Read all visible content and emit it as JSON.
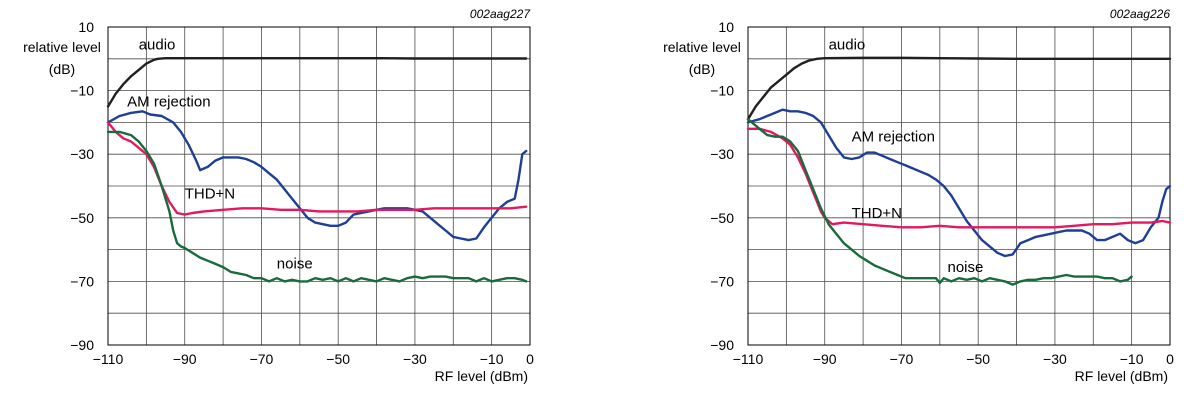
{
  "chart_data": [
    {
      "type": "line",
      "id_label": "002aag227",
      "ylabel": [
        "relative level",
        "(dB)"
      ],
      "xlabel": "RF level (dBm)",
      "xlim": [
        -110,
        0
      ],
      "ylim": [
        -90,
        10
      ],
      "xticks": [
        -110,
        -90,
        -70,
        -50,
        -30,
        -10,
        0
      ],
      "xtick_labels": [
        "−110",
        "−90",
        "−70",
        "−50",
        "−30",
        "−10",
        "0"
      ],
      "yticks": [
        10,
        -10,
        -30,
        -50,
        -70,
        -90
      ],
      "ytick_labels": [
        "10",
        "−10",
        "−30",
        "−50",
        "−70",
        "−90"
      ],
      "grid": true,
      "series": [
        {
          "name": "audio",
          "color": "#231f20",
          "label_at": [
            -102,
            3
          ],
          "x": [
            -110,
            -108,
            -106,
            -104,
            -102,
            -100,
            -98,
            -97,
            -95,
            -90,
            -80,
            -70,
            -60,
            -50,
            -40,
            -30,
            -20,
            -10,
            -1
          ],
          "y": [
            -15,
            -11,
            -8,
            -5.5,
            -3.5,
            -1.5,
            -0.3,
            0,
            0.2,
            0.2,
            0.2,
            0.2,
            0.2,
            0.2,
            0.2,
            0.1,
            0.1,
            0.1,
            0.1
          ]
        },
        {
          "name": "AM rejection",
          "color": "#1e3f96",
          "label_at": [
            -105,
            -15
          ],
          "x": [
            -110,
            -107,
            -104,
            -101,
            -99,
            -96,
            -93,
            -91,
            -89,
            -87,
            -86,
            -84,
            -82,
            -80,
            -78,
            -76,
            -74,
            -72,
            -70,
            -68,
            -66,
            -64,
            -62,
            -60,
            -58,
            -56,
            -54,
            -52,
            -50,
            -48,
            -46,
            -44,
            -42,
            -40,
            -38,
            -36,
            -34,
            -32,
            -30,
            -28,
            -26,
            -24,
            -22,
            -20,
            -18,
            -16,
            -14,
            -12,
            -10,
            -8,
            -6,
            -4,
            -3,
            -2,
            -1
          ],
          "y": [
            -20,
            -18,
            -17,
            -16.5,
            -17.5,
            -18,
            -20,
            -23,
            -27,
            -32,
            -35,
            -34,
            -32,
            -31,
            -31,
            -31,
            -31.5,
            -32.5,
            -34,
            -36,
            -38,
            -41,
            -44,
            -47,
            -50,
            -51.5,
            -52,
            -52.5,
            -52.5,
            -51.5,
            -49,
            -48.5,
            -48,
            -47.5,
            -47,
            -47,
            -47,
            -47,
            -47.5,
            -48,
            -50,
            -52,
            -54,
            -56,
            -56.5,
            -57,
            -56.5,
            -53,
            -50,
            -47,
            -45,
            -44,
            -38,
            -30,
            -29
          ]
        },
        {
          "name": "THD+N",
          "color": "#e4185c",
          "label_at": [
            -90,
            -44
          ],
          "x": [
            -110,
            -108,
            -106,
            -104,
            -102,
            -100,
            -98,
            -96,
            -94,
            -92,
            -90,
            -88,
            -85,
            -80,
            -75,
            -70,
            -65,
            -60,
            -55,
            -50,
            -45,
            -40,
            -35,
            -30,
            -25,
            -20,
            -15,
            -10,
            -5,
            -1
          ],
          "y": [
            -20,
            -23,
            -25,
            -26,
            -28,
            -30,
            -34,
            -40,
            -45,
            -48.5,
            -49,
            -48.5,
            -48,
            -47.5,
            -47,
            -47,
            -47.5,
            -47.5,
            -48,
            -48,
            -48,
            -47.5,
            -47.5,
            -47.5,
            -47,
            -47,
            -47,
            -47,
            -47,
            -46.5
          ]
        },
        {
          "name": "noise",
          "color": "#1a6b3c",
          "label_at": [
            -66,
            -66
          ],
          "x": [
            -110,
            -107,
            -104,
            -102,
            -100,
            -98,
            -96,
            -94,
            -93,
            -92,
            -91,
            -90,
            -88,
            -86,
            -84,
            -82,
            -80,
            -78,
            -76,
            -74,
            -72,
            -70,
            -68,
            -66,
            -64,
            -62,
            -60,
            -58,
            -56,
            -54,
            -52,
            -50,
            -48,
            -46,
            -44,
            -42,
            -40,
            -38,
            -36,
            -34,
            -32,
            -30,
            -28,
            -26,
            -24,
            -22,
            -20,
            -18,
            -16,
            -14,
            -12,
            -10,
            -8,
            -6,
            -4,
            -2,
            -1
          ],
          "y": [
            -23,
            -23,
            -24,
            -26,
            -29,
            -33,
            -40,
            -48,
            -54,
            -58,
            -59,
            -59.5,
            -61,
            -62.5,
            -63.5,
            -64.5,
            -65.5,
            -67,
            -67.5,
            -68,
            -69,
            -69,
            -70,
            -69,
            -70,
            -69.5,
            -70,
            -70,
            -69,
            -69.5,
            -69,
            -70,
            -69,
            -70,
            -69,
            -69.5,
            -70,
            -69,
            -69.5,
            -70,
            -69,
            -68.5,
            -69,
            -68.5,
            -68.5,
            -68.5,
            -69,
            -69,
            -69,
            -70,
            -69,
            -70,
            -69.5,
            -69,
            -69,
            -69.5,
            -70
          ]
        }
      ]
    },
    {
      "type": "line",
      "id_label": "002aag226",
      "ylabel": [
        "relative level",
        "(dB)"
      ],
      "xlabel": "RF level (dBm)",
      "xlim": [
        -110,
        0
      ],
      "ylim": [
        -90,
        10
      ],
      "xticks": [
        -110,
        -90,
        -70,
        -50,
        -30,
        -10,
        0
      ],
      "xtick_labels": [
        "−110",
        "−90",
        "−70",
        "−50",
        "−30",
        "−10",
        "0"
      ],
      "yticks": [
        10,
        -10,
        -30,
        -50,
        -70,
        -90
      ],
      "ytick_labels": [
        "10",
        "−10",
        "−30",
        "−50",
        "−70",
        "−90"
      ],
      "grid": true,
      "series": [
        {
          "name": "audio",
          "color": "#231f20",
          "label_at": [
            -89,
            3
          ],
          "x": [
            -110,
            -108,
            -106,
            -104,
            -102,
            -100,
            -98,
            -96,
            -94,
            -92,
            -90,
            -80,
            -70,
            -60,
            -50,
            -40,
            -30,
            -20,
            -10,
            0
          ],
          "y": [
            -19,
            -15,
            -12,
            -9,
            -7,
            -5,
            -3,
            -1.5,
            -0.5,
            0,
            0.2,
            0.3,
            0.3,
            0.2,
            0.1,
            0,
            0,
            0,
            0,
            0
          ]
        },
        {
          "name": "AM rejection",
          "color": "#1e3f96",
          "label_at": [
            -83,
            -26
          ],
          "x": [
            -110,
            -107,
            -105,
            -103,
            -101,
            -99,
            -97,
            -95,
            -93,
            -91,
            -89,
            -87,
            -85,
            -83,
            -81,
            -79,
            -77,
            -75,
            -73,
            -71,
            -69,
            -67,
            -65,
            -63,
            -61,
            -59,
            -57,
            -55,
            -53,
            -51,
            -49,
            -47,
            -45,
            -43,
            -41,
            -39,
            -37,
            -35,
            -33,
            -31,
            -29,
            -27,
            -25,
            -23,
            -21,
            -19,
            -17,
            -15,
            -13,
            -11,
            -9,
            -7,
            -5,
            -3,
            -2,
            -1,
            0
          ],
          "y": [
            -20,
            -19,
            -18,
            -17,
            -16,
            -16.5,
            -16.5,
            -17,
            -18,
            -20,
            -24,
            -28,
            -31,
            -31.5,
            -31,
            -29.5,
            -29.5,
            -30.5,
            -31.5,
            -32.5,
            -33.5,
            -34.5,
            -35.5,
            -36.5,
            -38,
            -40,
            -43,
            -47,
            -51,
            -54,
            -57,
            -59,
            -61,
            -62,
            -61.5,
            -58,
            -57,
            -56,
            -55.5,
            -55,
            -54.5,
            -54,
            -54,
            -54,
            -55,
            -57,
            -57,
            -56,
            -55,
            -57,
            -58,
            -57,
            -53,
            -50,
            -45,
            -41,
            -40
          ]
        },
        {
          "name": "THD+N",
          "color": "#e4185c",
          "label_at": [
            -83,
            -50
          ],
          "x": [
            -110,
            -107,
            -104,
            -101,
            -99,
            -97,
            -95,
            -93,
            -91,
            -90,
            -88,
            -85,
            -80,
            -75,
            -70,
            -65,
            -60,
            -55,
            -50,
            -45,
            -40,
            -35,
            -30,
            -25,
            -20,
            -15,
            -10,
            -5,
            -2,
            0
          ],
          "y": [
            -22,
            -22,
            -23,
            -25,
            -27,
            -31,
            -36,
            -42,
            -48,
            -50,
            -52,
            -51.5,
            -52,
            -52.5,
            -53,
            -53,
            -52.5,
            -53,
            -53,
            -53,
            -53,
            -53,
            -53,
            -52.5,
            -52,
            -52,
            -51.5,
            -51.5,
            -51,
            -51.5
          ]
        },
        {
          "name": "noise",
          "color": "#1a6b3c",
          "label_at": [
            -58,
            -67
          ],
          "x": [
            -110,
            -107,
            -105,
            -103,
            -101,
            -99,
            -97,
            -95,
            -93,
            -91,
            -89,
            -87,
            -85,
            -83,
            -81,
            -79,
            -77,
            -75,
            -73,
            -71,
            -69,
            -67,
            -65,
            -63,
            -61,
            -60,
            -59,
            -57,
            -55,
            -53,
            -51,
            -49,
            -47,
            -45,
            -43,
            -41,
            -39,
            -37,
            -35,
            -33,
            -31,
            -29,
            -27,
            -25,
            -23,
            -21,
            -19,
            -17,
            -15,
            -13,
            -11,
            -10
          ],
          "y": [
            -19,
            -22,
            -24,
            -24.5,
            -24.5,
            -26,
            -29,
            -35,
            -41,
            -47,
            -52,
            -55,
            -58,
            -60,
            -62,
            -63.5,
            -65,
            -66,
            -67,
            -68,
            -69,
            -69,
            -69,
            -69,
            -69,
            -70.5,
            -69,
            -70,
            -69,
            -69.5,
            -69,
            -70,
            -69,
            -69.5,
            -70,
            -71,
            -70,
            -69.5,
            -69.5,
            -69,
            -69,
            -68.5,
            -68,
            -68.5,
            -68.5,
            -68.5,
            -68.5,
            -69,
            -69,
            -70,
            -69.5,
            -68.5
          ]
        }
      ]
    }
  ]
}
